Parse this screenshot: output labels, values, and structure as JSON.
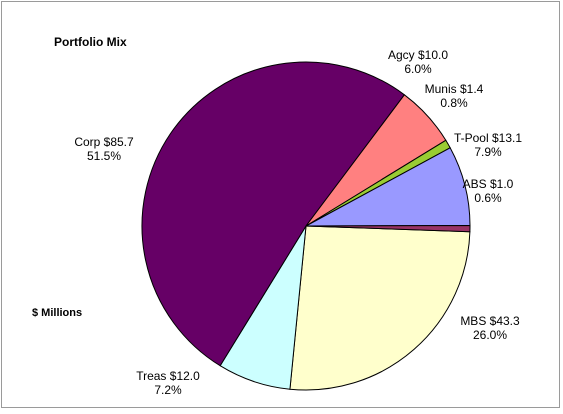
{
  "chart_data": {
    "type": "pie",
    "title": "Portfolio Mix",
    "unit_label": "$ Millions",
    "slices": [
      {
        "name": "MBS",
        "value": 43.3,
        "percent": "26.0%",
        "label_value": "$43.3",
        "color": "#ffffcc"
      },
      {
        "name": "Treas",
        "value": 12.0,
        "percent": "7.2%",
        "label_value": "$12.0",
        "color": "#ccffff"
      },
      {
        "name": "Corp",
        "value": 85.7,
        "percent": "51.5%",
        "label_value": "$85.7",
        "color": "#660066"
      },
      {
        "name": "Agcy",
        "value": 10.0,
        "percent": "6.0%",
        "label_value": "$10.0",
        "color": "#ff8080"
      },
      {
        "name": "Munis",
        "value": 1.4,
        "percent": "0.8%",
        "label_value": "$1.4",
        "color": "#99cc33"
      },
      {
        "name": "T-Pool",
        "value": 13.1,
        "percent": "7.9%",
        "label_value": "$13.1",
        "color": "#9999ff"
      },
      {
        "name": "ABS",
        "value": 1.0,
        "percent": "0.6%",
        "label_value": "$1.0",
        "color": "#993366"
      }
    ],
    "start_angle_deg": 2.0,
    "direction": "clockwise",
    "legend": "none"
  }
}
